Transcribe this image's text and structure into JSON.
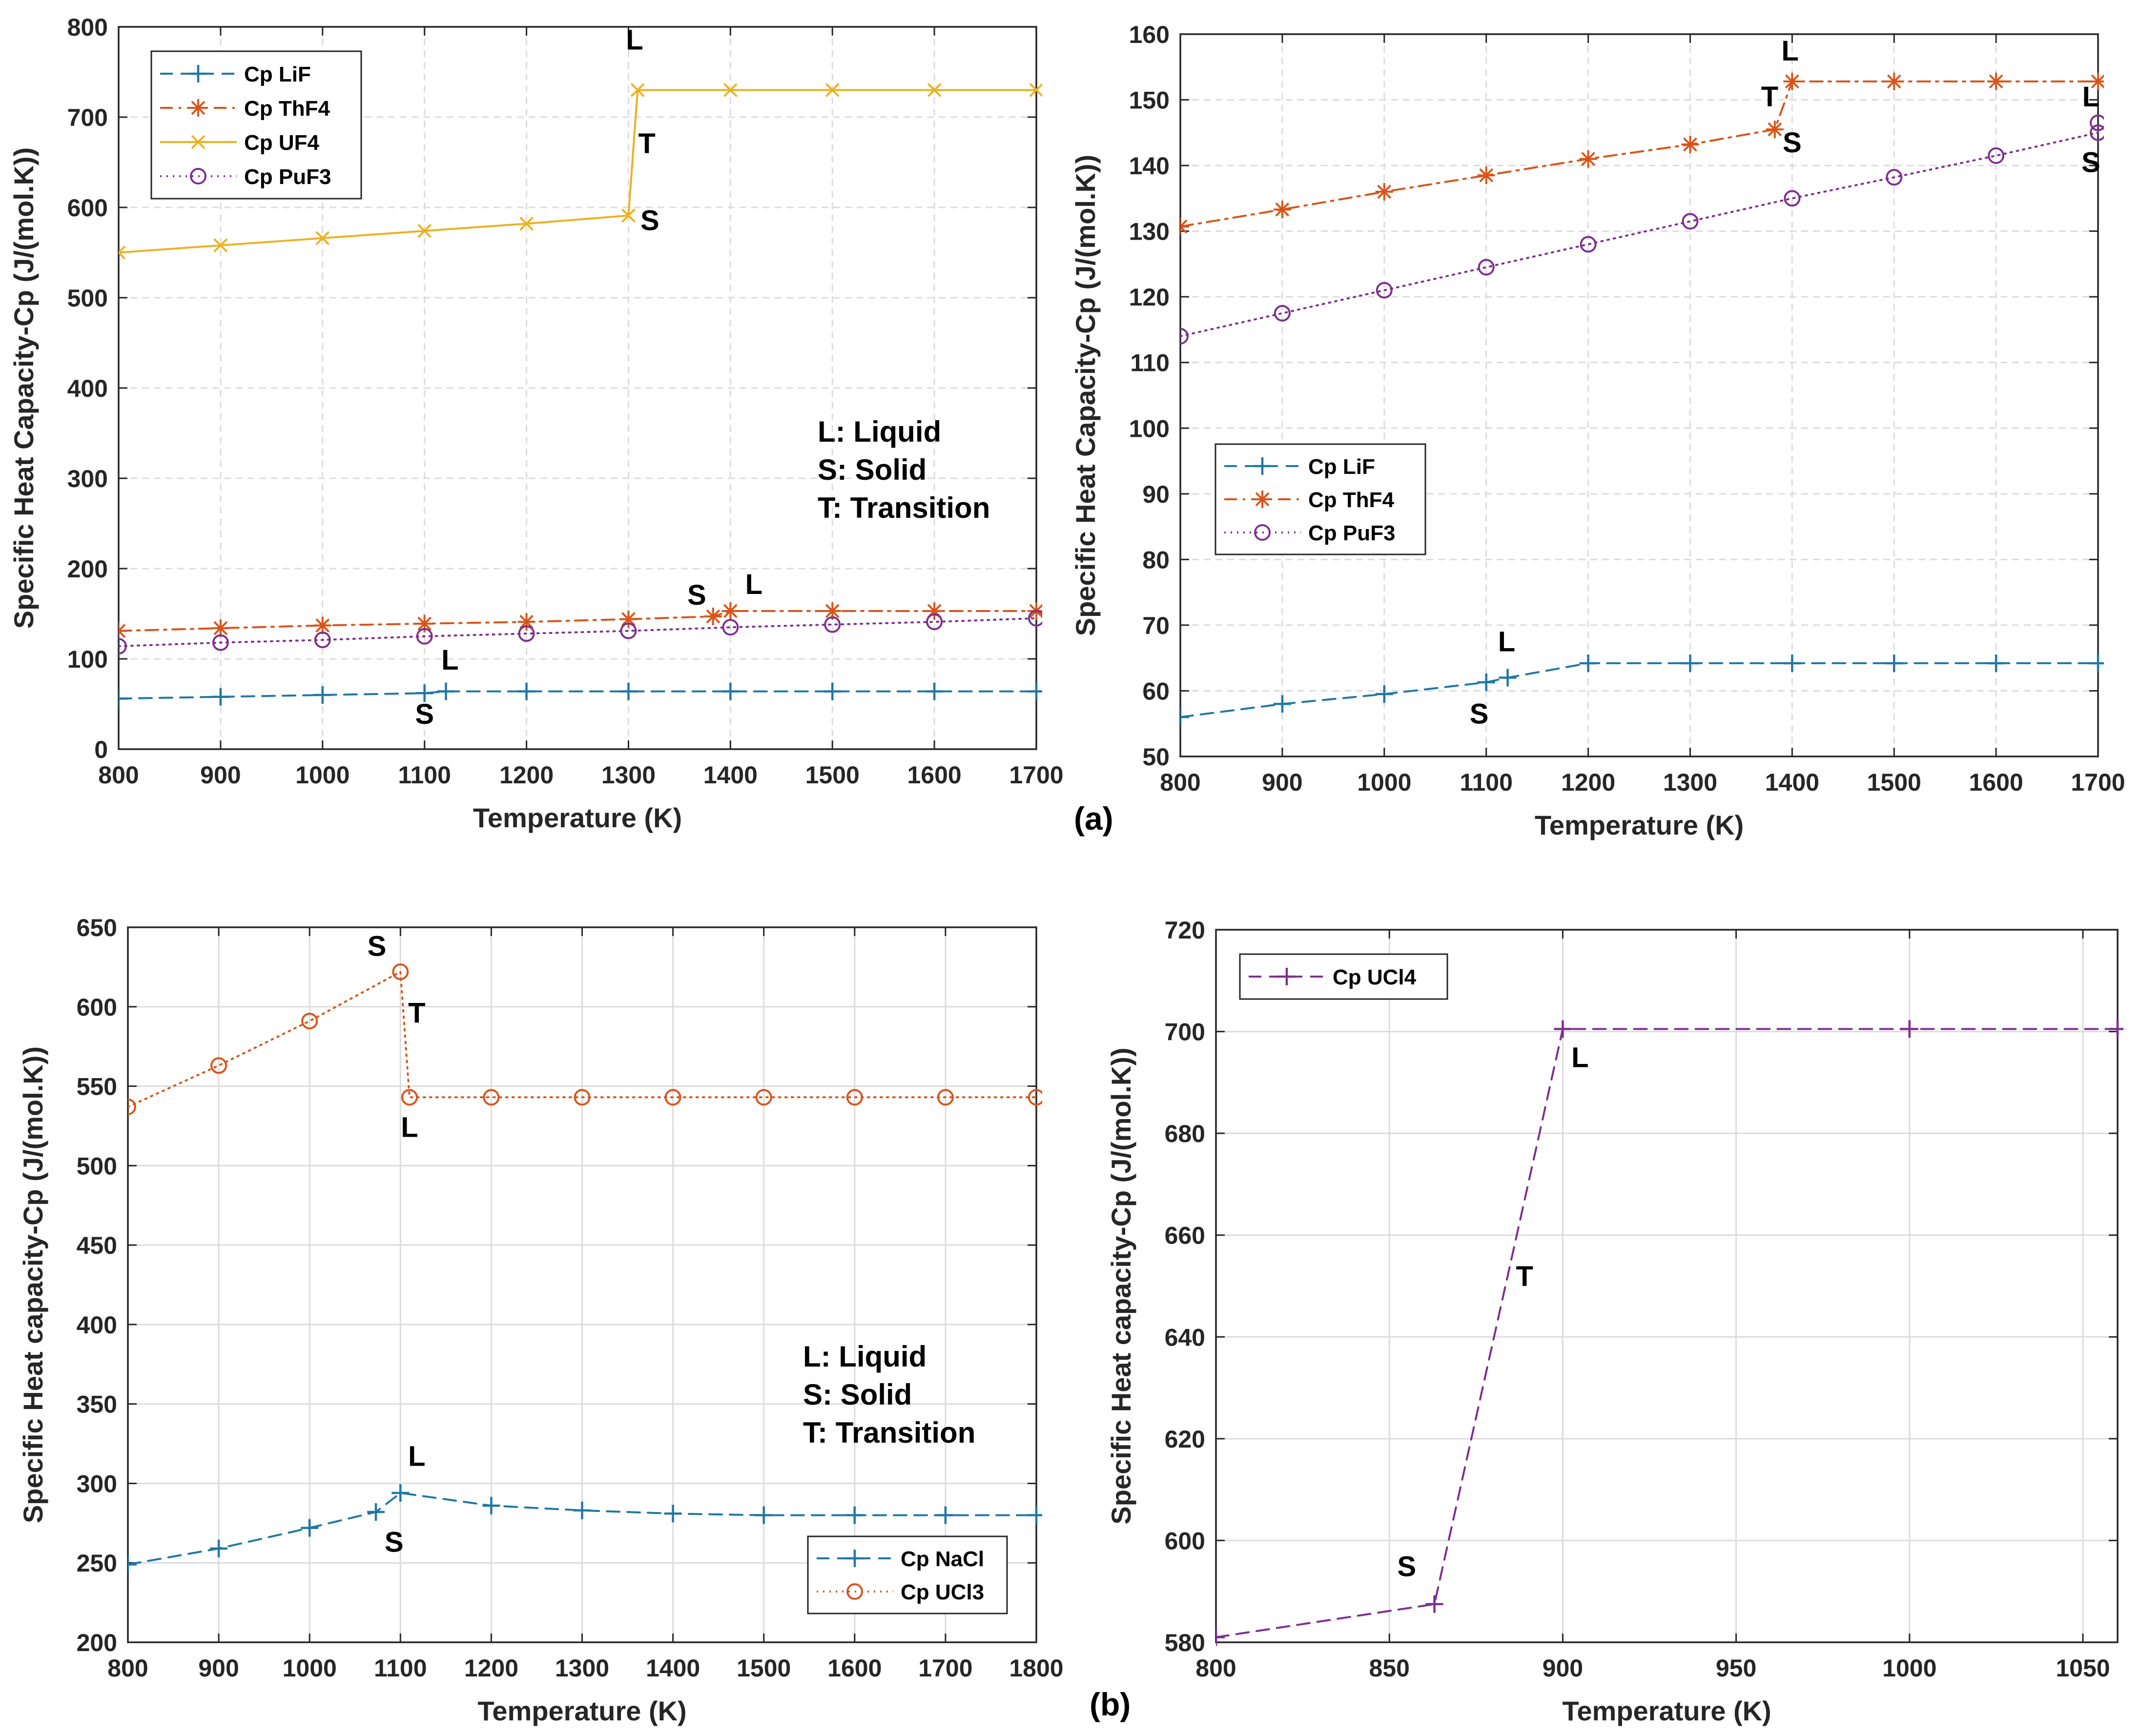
{
  "chart_data": [
    {
      "type": "line",
      "id": "top-left",
      "xlabel": "Temperature (K)",
      "ylabel": "Specific Heat Capacity-Cp (J/(mol.K))",
      "xlim": [
        800,
        1700
      ],
      "ylim": [
        0,
        800
      ],
      "xticks": [
        800,
        900,
        1000,
        1100,
        1200,
        1300,
        1400,
        1500,
        1600,
        1700
      ],
      "yticks": [
        0,
        100,
        200,
        300,
        400,
        500,
        600,
        700,
        800
      ],
      "legend_position": "top-left",
      "series": [
        {
          "name": "Cp LiF",
          "color": "#1f77a4",
          "dash": "dashed",
          "marker": "plus",
          "x": [
            800,
            900,
            1000,
            1100,
            1121,
            1200,
            1300,
            1400,
            1500,
            1600,
            1700
          ],
          "y": [
            56,
            58,
            60,
            62,
            64,
            64,
            64,
            64,
            64,
            64,
            64
          ]
        },
        {
          "name": "Cp ThF4",
          "color": "#d9541a",
          "dash": "dashdot",
          "marker": "asterisk",
          "x": [
            800,
            900,
            1000,
            1100,
            1200,
            1300,
            1383,
            1400,
            1500,
            1600,
            1700
          ],
          "y": [
            131,
            134,
            137,
            139,
            141,
            144,
            147,
            153,
            153,
            153,
            153
          ]
        },
        {
          "name": "Cp UF4",
          "color": "#edb120",
          "dash": "solid",
          "marker": "x",
          "x": [
            800,
            900,
            1000,
            1100,
            1200,
            1300,
            1309,
            1400,
            1500,
            1600,
            1700
          ],
          "y": [
            550,
            558,
            566,
            574,
            582,
            591,
            730,
            730,
            730,
            730,
            730
          ]
        },
        {
          "name": "Cp PuF3",
          "color": "#7e2f8e",
          "dash": "dotted",
          "marker": "circle",
          "x": [
            800,
            900,
            1000,
            1100,
            1200,
            1300,
            1400,
            1500,
            1600,
            1700
          ],
          "y": [
            114,
            118,
            121,
            125,
            128,
            131,
            135,
            138,
            141,
            145
          ]
        }
      ],
      "annotations": [
        {
          "text": "L",
          "x": 1306,
          "y": 775
        },
        {
          "text": "T",
          "x": 1318,
          "y": 660
        },
        {
          "text": "S",
          "x": 1321,
          "y": 575
        },
        {
          "text": "S",
          "x": 1367,
          "y": 160
        },
        {
          "text": "L",
          "x": 1423,
          "y": 172
        },
        {
          "text": "L",
          "x": 1125,
          "y": 88
        },
        {
          "text": "S",
          "x": 1100,
          "y": 28
        }
      ],
      "key_lines": [
        "L: Liquid",
        "S: Solid",
        "T: Transition"
      ]
    },
    {
      "type": "line",
      "id": "top-right",
      "xlabel": "Temperature (K)",
      "ylabel": "Specific Heat Capacity-Cp (J/(mol.K))",
      "xlim": [
        800,
        1700
      ],
      "ylim": [
        50,
        160
      ],
      "xticks": [
        800,
        900,
        1000,
        1100,
        1200,
        1300,
        1400,
        1500,
        1600,
        1700
      ],
      "yticks": [
        50,
        60,
        70,
        80,
        90,
        100,
        110,
        120,
        130,
        140,
        150,
        160
      ],
      "legend_position": "middle-left",
      "series": [
        {
          "name": "Cp LiF",
          "color": "#1f77a4",
          "dash": "dashed",
          "marker": "plus",
          "x": [
            800,
            900,
            1000,
            1100,
            1121,
            1200,
            1300,
            1400,
            1500,
            1600,
            1700
          ],
          "y": [
            56,
            58,
            59.5,
            61.3,
            62,
            64.2,
            64.2,
            64.2,
            64.2,
            64.2,
            64.2
          ]
        },
        {
          "name": "Cp ThF4",
          "color": "#d9541a",
          "dash": "dashdot",
          "marker": "asterisk",
          "x": [
            800,
            900,
            1000,
            1100,
            1200,
            1300,
            1383,
            1400,
            1500,
            1600,
            1700
          ],
          "y": [
            130.7,
            133.3,
            136,
            138.5,
            141,
            143.2,
            145.5,
            152.8,
            152.8,
            152.8,
            152.8
          ]
        },
        {
          "name": "Cp PuF3",
          "color": "#7e2f8e",
          "dash": "dotted",
          "marker": "circle",
          "x": [
            800,
            900,
            1000,
            1100,
            1200,
            1300,
            1400,
            1500,
            1600,
            1700,
            1700
          ],
          "y": [
            114,
            117.5,
            121,
            124.5,
            128,
            131.5,
            135,
            138.2,
            141.5,
            145,
            146.5
          ]
        }
      ],
      "annotations": [
        {
          "text": "L",
          "x": 1398,
          "y": 156
        },
        {
          "text": "T",
          "x": 1378,
          "y": 149
        },
        {
          "text": "S",
          "x": 1400,
          "y": 142
        },
        {
          "text": "L",
          "x": 1693,
          "y": 149
        },
        {
          "text": "S",
          "x": 1693,
          "y": 139
        },
        {
          "text": "L",
          "x": 1120,
          "y": 66
        },
        {
          "text": "S",
          "x": 1093,
          "y": 55
        }
      ]
    },
    {
      "type": "line",
      "id": "bottom-left",
      "xlabel": "Temperature (K)",
      "ylabel": "Specific Heat capacity-Cp (J/(mol.K))",
      "xlim": [
        800,
        1800
      ],
      "ylim": [
        200,
        650
      ],
      "xticks": [
        800,
        900,
        1000,
        1100,
        1200,
        1300,
        1400,
        1500,
        1600,
        1700,
        1800
      ],
      "yticks": [
        200,
        250,
        300,
        350,
        400,
        450,
        500,
        550,
        600,
        650
      ],
      "legend_position": "bottom-right",
      "series": [
        {
          "name": "Cp NaCl",
          "color": "#1f77a4",
          "dash": "dashed",
          "marker": "plus",
          "x": [
            800,
            900,
            1000,
            1073,
            1100,
            1200,
            1300,
            1400,
            1500,
            1600,
            1700,
            1800
          ],
          "y": [
            249,
            259,
            272,
            282,
            294,
            286,
            283,
            281,
            280,
            280,
            280,
            280
          ]
        },
        {
          "name": "Cp UCl3",
          "color": "#d9541a",
          "dash": "dotted",
          "marker": "circle",
          "x": [
            800,
            900,
            1000,
            1100,
            1110,
            1200,
            1300,
            1400,
            1500,
            1600,
            1700,
            1800
          ],
          "y": [
            537,
            563,
            591,
            622,
            543,
            543,
            543,
            543,
            543,
            543,
            543,
            543
          ]
        }
      ],
      "annotations": [
        {
          "text": "S",
          "x": 1074,
          "y": 632
        },
        {
          "text": "T",
          "x": 1118,
          "y": 590
        },
        {
          "text": "L",
          "x": 1110,
          "y": 518
        },
        {
          "text": "L",
          "x": 1118,
          "y": 311
        },
        {
          "text": "S",
          "x": 1093,
          "y": 257
        }
      ],
      "key_lines": [
        "L: Liquid",
        "S: Solid",
        "T: Transition"
      ]
    },
    {
      "type": "line",
      "id": "bottom-right",
      "xlabel": "Temperature (K)",
      "ylabel": "Specific Heat capacity-Cp (J/(mol.K))",
      "xlim": [
        800,
        1060
      ],
      "ylim": [
        580,
        720
      ],
      "xticks": [
        800,
        850,
        900,
        950,
        1000,
        1050
      ],
      "yticks": [
        580,
        600,
        620,
        640,
        660,
        680,
        700,
        720
      ],
      "legend_position": "top-left",
      "series": [
        {
          "name": "Cp UCl4",
          "color": "#7e2f8e",
          "dash": "dashed",
          "marker": "plus",
          "x": [
            800,
            863,
            900,
            1000,
            1060
          ],
          "y": [
            581,
            587.5,
            700.5,
            700.5,
            700.5
          ]
        }
      ],
      "annotations": [
        {
          "text": "S",
          "x": 855,
          "y": 593
        },
        {
          "text": "T",
          "x": 889,
          "y": 650
        },
        {
          "text": "L",
          "x": 905,
          "y": 693
        }
      ]
    }
  ],
  "panel_labels": [
    "(a)",
    "(b)"
  ]
}
